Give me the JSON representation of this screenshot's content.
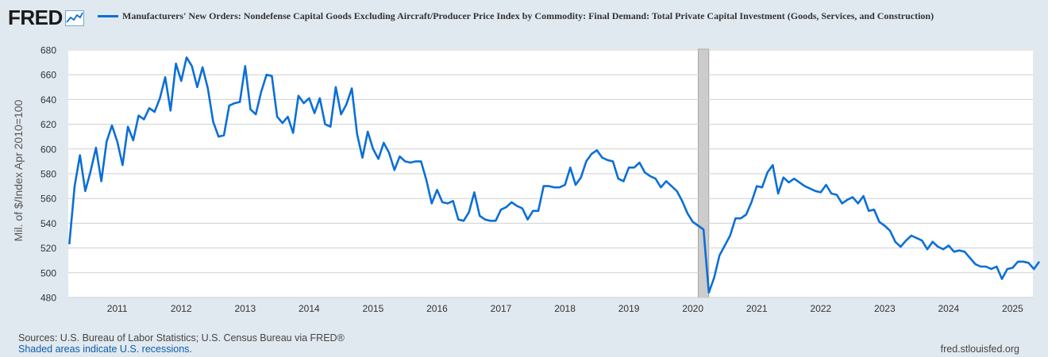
{
  "logo": {
    "text": "FRED",
    "icon": "chart-line-icon"
  },
  "colors": {
    "series": "#0b6fd6",
    "background": "#e1e9f0",
    "plot_bg": "#ffffff",
    "grid": "#cfcfcf",
    "recession": "#cccccc"
  },
  "footer": {
    "sources": "Sources: U.S. Bureau of Labor Statistics; U.S. Census Bureau via FRED®",
    "recession_note": "Shaded areas indicate U.S. recessions.",
    "site": "fred.stlouisfed.org"
  },
  "chart_data": {
    "type": "line",
    "title": "Manufacturers' New Orders: Nondefense Capital Goods Excluding Aircraft/Producer Price Index by Commodity: Final Demand: Total Private Capital Investment (Goods, Services, and Construction)",
    "ylabel": "Mil. of $/Index Apr 2010=100",
    "xlabel": "",
    "ylim": [
      480,
      680
    ],
    "yticks": [
      480,
      500,
      520,
      540,
      560,
      580,
      600,
      620,
      640,
      660,
      680
    ],
    "xticks": [
      "2011",
      "2012",
      "2013",
      "2014",
      "2015",
      "2016",
      "2017",
      "2018",
      "2019",
      "2020",
      "2021",
      "2022",
      "2023",
      "2024",
      "2025"
    ],
    "x_start": "2010-04",
    "frequency": "monthly",
    "grid": true,
    "legend_position": "top",
    "recessions": [
      {
        "start": "2020-02",
        "end": "2020-04"
      }
    ],
    "series": [
      {
        "name": "Manufacturers' New Orders: Nondefense Capital Goods Excluding Aircraft/Producer Price Index by Commodity: Final Demand: Total Private Capital Investment (Goods, Services, and Construction)",
        "values": [
          523,
          570,
          595,
          566,
          582,
          601,
          574,
          606,
          619,
          606,
          587,
          618,
          607,
          627,
          624,
          633,
          630,
          641,
          658,
          631,
          669,
          655,
          674,
          667,
          650,
          666,
          649,
          622,
          610,
          611,
          635,
          637,
          638,
          667,
          632,
          628,
          646,
          660,
          659,
          626,
          621,
          626,
          613,
          643,
          637,
          641,
          629,
          641,
          620,
          618,
          650,
          628,
          636,
          649,
          612,
          593,
          614,
          600,
          592,
          605,
          597,
          583,
          594,
          590,
          589,
          590,
          590,
          575,
          556,
          567,
          557,
          556,
          558,
          543,
          542,
          549,
          565,
          546,
          543,
          542,
          542,
          551,
          553,
          557,
          554,
          552,
          543,
          550,
          550,
          570,
          570,
          569,
          569,
          571,
          585,
          571,
          577,
          590,
          596,
          599,
          593,
          591,
          590,
          576,
          574,
          585,
          585,
          589,
          581,
          578,
          576,
          569,
          574,
          570,
          566,
          558,
          548,
          541,
          538,
          535,
          484,
          496,
          514,
          522,
          530,
          544,
          544,
          547,
          557,
          570,
          569,
          581,
          587,
          564,
          577,
          573,
          576,
          573,
          570,
          568,
          566,
          565,
          571,
          564,
          563,
          556,
          559,
          561,
          556,
          562,
          550,
          551,
          541,
          538,
          534,
          525,
          521,
          526,
          530,
          528,
          526,
          519,
          525,
          521,
          519,
          522,
          517,
          518,
          517,
          512,
          507,
          505,
          505,
          503,
          505,
          495,
          503,
          504,
          509,
          509,
          508,
          503,
          509
        ]
      }
    ]
  }
}
